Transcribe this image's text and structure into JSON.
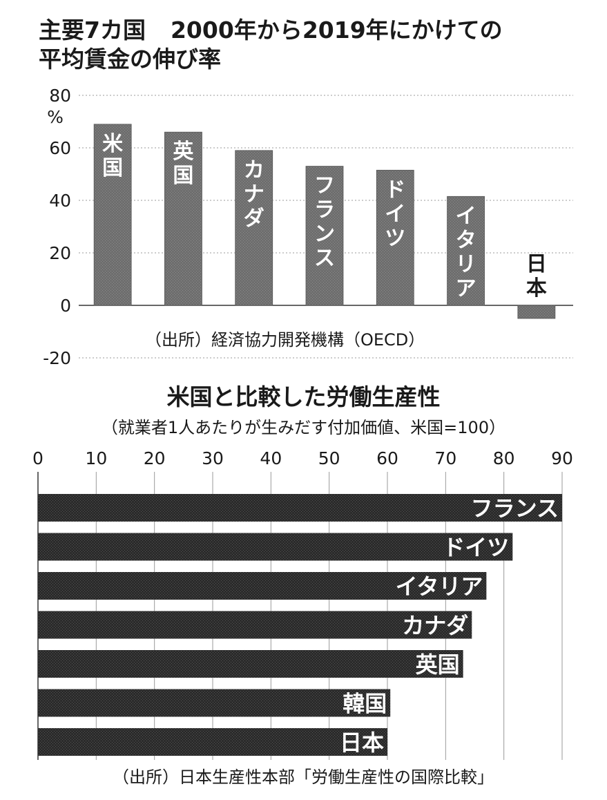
{
  "header": {
    "title_part1": "主要7カ国",
    "title_part2": "2000年から2019年にかけての",
    "title_line2": "平均賃金の伸び率"
  },
  "chart_top_source": "（出所）経済協力開発機構（OECD）",
  "bottom_header": {
    "title": "米国と比較した労働生産性",
    "subtitle": "（就業者1人あたりが生みだす付加価値、米国=100）"
  },
  "chart_bottom_source": "（出所）日本生産性本部「労働生産性の国際比較」",
  "colors": {
    "bar_top": "#6e6e6e",
    "bar_bottom": "#2b2b2b",
    "grid": "#9a9a9a",
    "text": "#1a1a1a"
  },
  "chart_data": [
    {
      "type": "bar",
      "ylabel": "%",
      "ylim": [
        -20,
        80
      ],
      "yticks": [
        80,
        60,
        40,
        20,
        0,
        -20
      ],
      "grid": true,
      "categories": [
        "米国",
        "英国",
        "カナダ",
        "フランス",
        "ドイツ",
        "イタリア",
        "日本"
      ],
      "values": [
        69,
        66,
        59,
        53,
        51.5,
        41.5,
        -5
      ]
    },
    {
      "type": "bar",
      "orientation": "horizontal",
      "xlim": [
        0,
        90
      ],
      "xticks": [
        0,
        10,
        20,
        30,
        40,
        50,
        60,
        70,
        80,
        90
      ],
      "grid": true,
      "categories": [
        "フランス",
        "ドイツ",
        "イタリア",
        "カナダ",
        "英国",
        "韓国",
        "日本"
      ],
      "values": [
        90,
        81.5,
        77,
        74.5,
        73,
        60.5,
        60
      ]
    }
  ]
}
